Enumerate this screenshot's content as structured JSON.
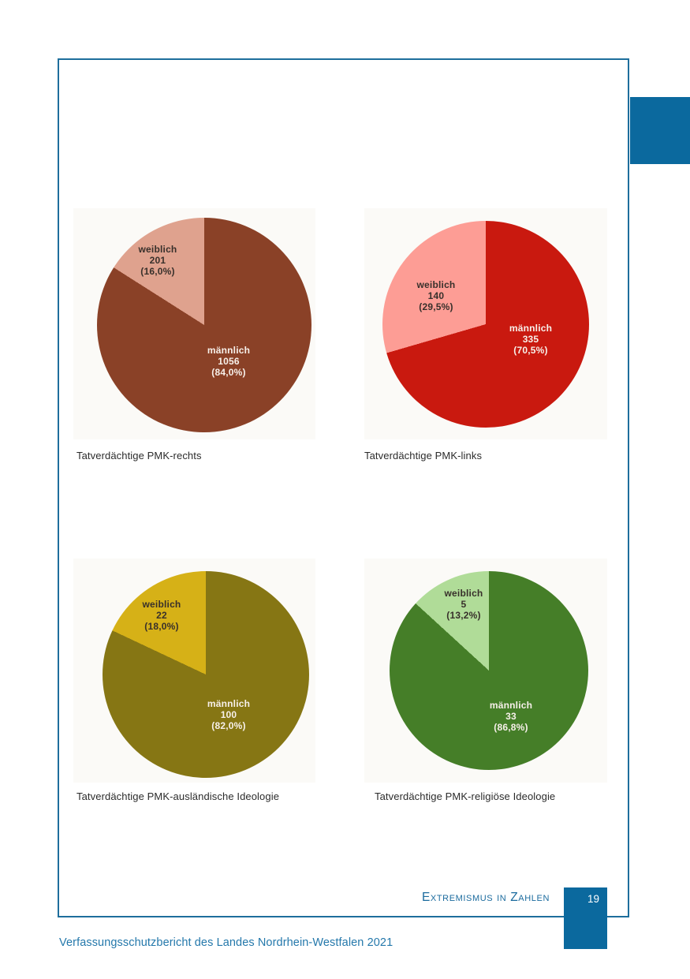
{
  "footer": {
    "section_title": "Extremismus in Zahlen",
    "page_number": "19",
    "report_title": "Verfassungsschutzbericht des Landes Nordrhein-Westfalen 2021"
  },
  "colors": {
    "frame_border": "#1e6e9c",
    "chapter_tab": "#0b699e",
    "page_badge": "#0b699e",
    "section_title_text": "#1b6b9e",
    "report_title_text": "#2478ab",
    "panel_background": "#fbfaf7"
  },
  "chart_data": [
    {
      "type": "pie",
      "title": "Tatverdächtige PMK-rechts",
      "direction": "clockwise",
      "start_angle_deg": 0,
      "slices": [
        {
          "label": "männlich",
          "value": 1056,
          "percent": 84.0,
          "display_percent": "(84,0%)",
          "color": "#8a4127"
        },
        {
          "label": "weiblich",
          "value": 201,
          "percent": 16.0,
          "display_percent": "(16,0%)",
          "color": "#dfa28e"
        }
      ]
    },
    {
      "type": "pie",
      "title": "Tatverdächtige PMK-links",
      "direction": "clockwise",
      "start_angle_deg": 0,
      "slices": [
        {
          "label": "männlich",
          "value": 335,
          "percent": 70.5,
          "display_percent": "(70,5%)",
          "color": "#c9190f"
        },
        {
          "label": "weiblich",
          "value": 140,
          "percent": 29.5,
          "display_percent": "(29,5%)",
          "color": "#fd9d95"
        }
      ]
    },
    {
      "type": "pie",
      "title": "Tatverdächtige PMK-ausländische Ideologie",
      "direction": "clockwise",
      "start_angle_deg": 0,
      "slices": [
        {
          "label": "männlich",
          "value": 100,
          "percent": 82.0,
          "display_percent": "(82,0%)",
          "color": "#867614"
        },
        {
          "label": "weiblich",
          "value": 22,
          "percent": 18.0,
          "display_percent": "(18,0%)",
          "color": "#d6b117"
        }
      ]
    },
    {
      "type": "pie",
      "title": "Tatverdächtige PMK-religiöse Ideologie",
      "direction": "clockwise",
      "start_angle_deg": 0,
      "slices": [
        {
          "label": "männlich",
          "value": 33,
          "percent": 86.8,
          "display_percent": "(86,8%)",
          "color": "#457e28"
        },
        {
          "label": "weiblich",
          "value": 5,
          "percent": 13.2,
          "display_percent": "(13,2%)",
          "color": "#b0dc98"
        }
      ]
    }
  ]
}
